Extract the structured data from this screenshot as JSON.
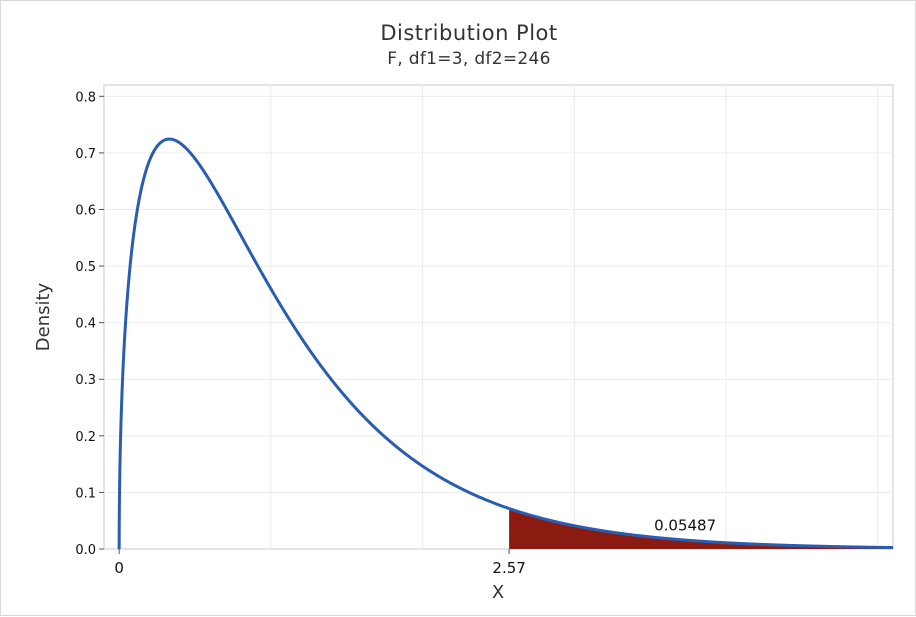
{
  "chart_data": {
    "type": "area",
    "title": "Distribution Plot",
    "subtitle": "F, df1=3, df2=246",
    "xlabel": "X",
    "ylabel": "Density",
    "distribution": {
      "family": "F",
      "df1": 3,
      "df2": 246
    },
    "xlim": [
      -0.1,
      5.1
    ],
    "ylim": [
      0,
      0.82
    ],
    "yticks": [
      {
        "value": 0.0,
        "label": "0.0"
      },
      {
        "value": 0.1,
        "label": "0.1"
      },
      {
        "value": 0.2,
        "label": "0.2"
      },
      {
        "value": 0.3,
        "label": "0.3"
      },
      {
        "value": 0.4,
        "label": "0.4"
      },
      {
        "value": 0.5,
        "label": "0.5"
      },
      {
        "value": 0.6,
        "label": "0.6"
      },
      {
        "value": 0.7,
        "label": "0.7"
      },
      {
        "value": 0.8,
        "label": "0.8"
      }
    ],
    "xticks": [
      {
        "value": 0,
        "label": "0"
      },
      {
        "value": 2.57,
        "label": "2.57"
      }
    ],
    "gridlines_x": [
      1,
      2,
      3,
      4,
      5
    ],
    "grid": true,
    "shaded_region": {
      "from": 2.57,
      "to": 5.1,
      "area": "0.05487"
    },
    "annotation": {
      "text": "0.05487",
      "x": 3.73,
      "y": 0.033
    },
    "colors": {
      "curve": "#2a5db0",
      "fill": "#8b1b10",
      "grid": "#ececec",
      "axis": "#bdbdbd"
    }
  }
}
